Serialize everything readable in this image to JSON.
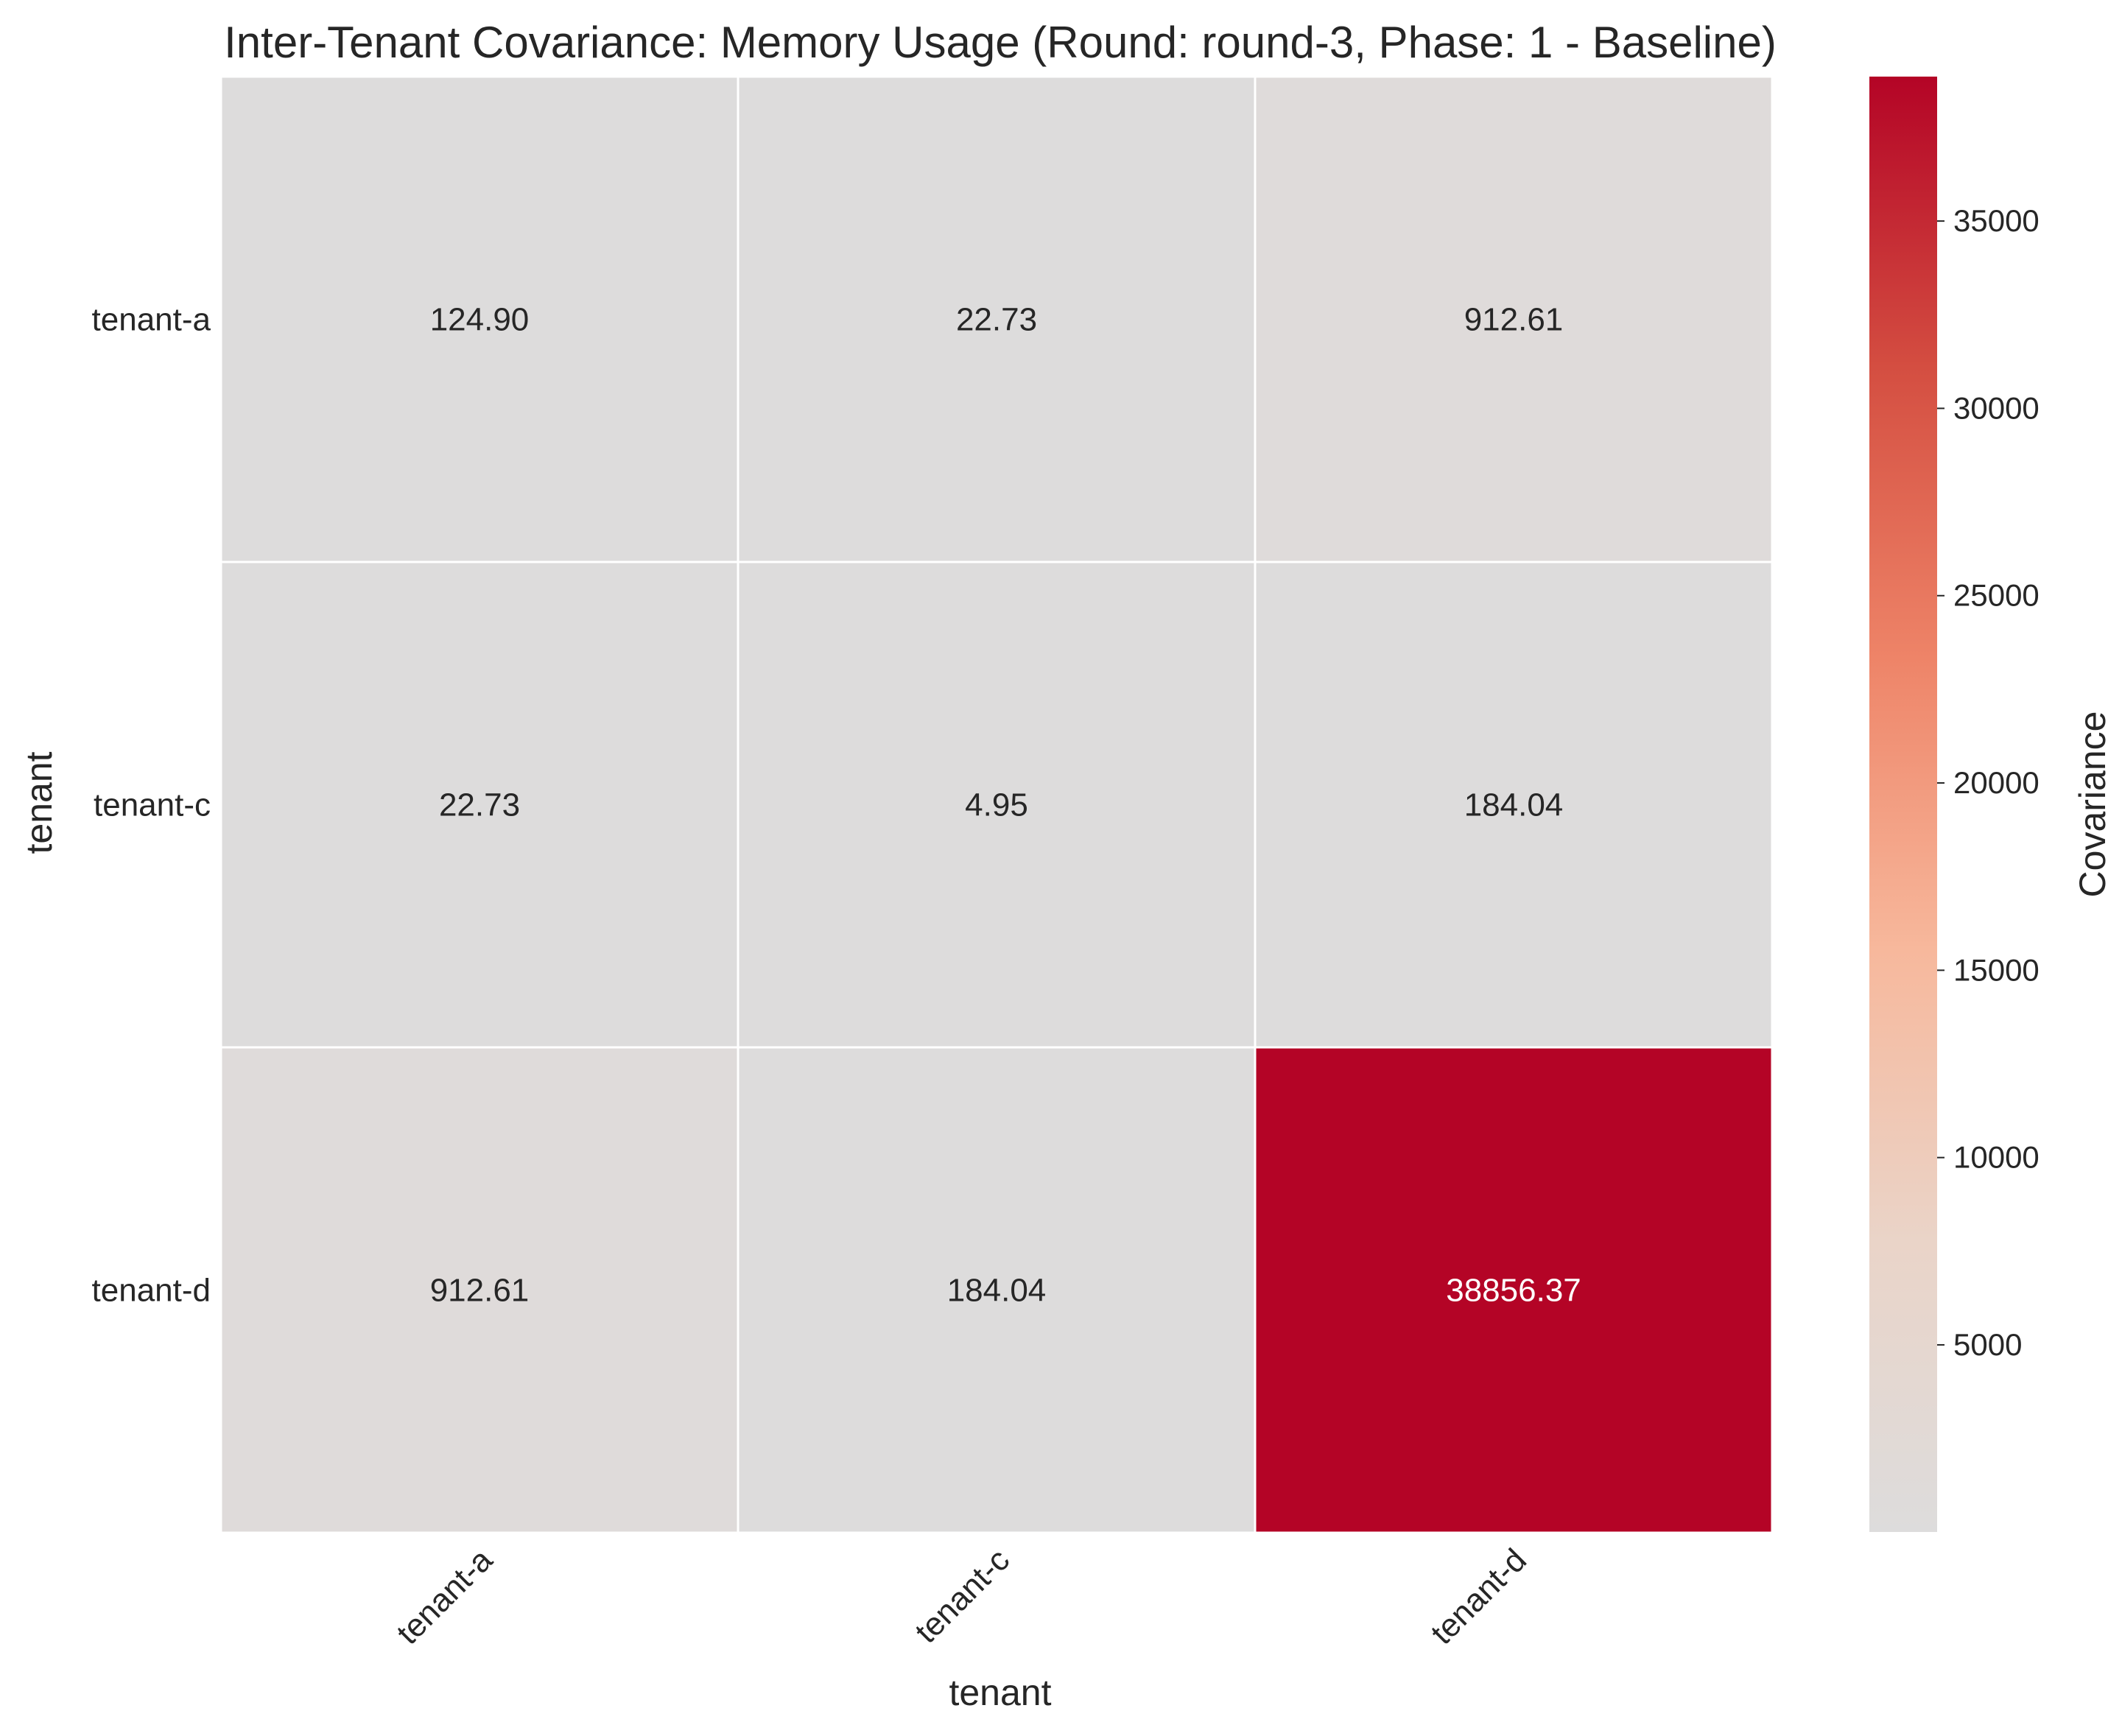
{
  "chart_data": {
    "type": "heatmap",
    "title": "Inter-Tenant Covariance: Memory Usage (Round: round-3, Phase: 1 - Baseline)",
    "xlabel": "tenant",
    "ylabel": "tenant",
    "x_categories": [
      "tenant-a",
      "tenant-c",
      "tenant-d"
    ],
    "y_categories": [
      "tenant-a",
      "tenant-c",
      "tenant-d"
    ],
    "values": [
      [
        124.9,
        22.73,
        912.61
      ],
      [
        22.73,
        4.95,
        184.04
      ],
      [
        912.61,
        184.04,
        38856.37
      ]
    ],
    "value_labels": [
      [
        "124.90",
        "22.73",
        "912.61"
      ],
      [
        "22.73",
        "4.95",
        "184.04"
      ],
      [
        "912.61",
        "184.04",
        "38856.37"
      ]
    ],
    "colorbar": {
      "label": "Covariance",
      "range": [
        4.95,
        38856.37
      ],
      "ticks": [
        5000,
        10000,
        15000,
        20000,
        25000,
        30000,
        35000
      ],
      "tick_labels": [
        "5000",
        "10000",
        "15000",
        "20000",
        "25000",
        "30000",
        "35000"
      ],
      "colormap": "coolwarm-upper-half",
      "color_stops": [
        "#dddcdc",
        "#ead4c8",
        "#f7b89c",
        "#ee8468",
        "#d44e41",
        "#b40426"
      ]
    },
    "grid": false
  }
}
